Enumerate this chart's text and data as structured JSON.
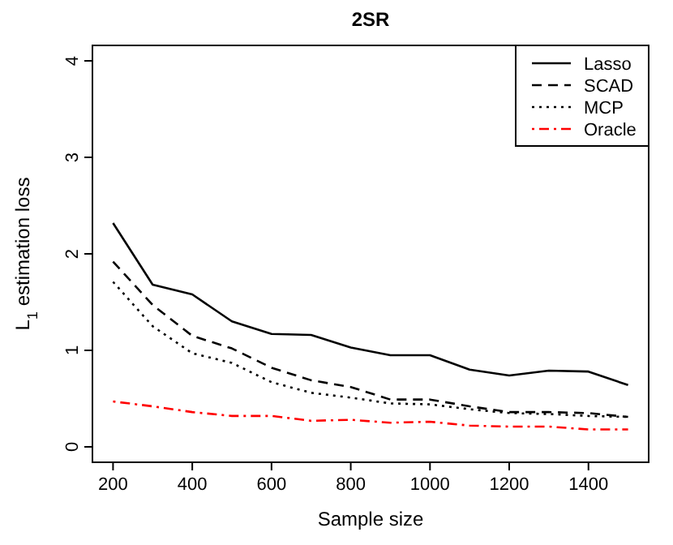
{
  "chart_data": {
    "type": "line",
    "title": "2SR",
    "xlabel": "Sample size",
    "ylabel": "L$_{1}$ estimation loss",
    "x": [
      200,
      300,
      400,
      500,
      600,
      700,
      800,
      900,
      1000,
      1100,
      1200,
      1300,
      1400,
      1500
    ],
    "xlim": [
      148,
      1552
    ],
    "xticks": [
      200,
      400,
      600,
      800,
      1000,
      1200,
      1400
    ],
    "ylim": [
      -0.16,
      4.16
    ],
    "yticks": [
      0,
      1,
      2,
      3,
      4
    ],
    "legend": "top right",
    "grid": false,
    "marker": "none",
    "series": [
      {
        "name": "Lasso",
        "color": "#000000",
        "line_style": "solid",
        "values": [
          2.32,
          1.68,
          1.58,
          1.3,
          1.17,
          1.16,
          1.03,
          0.95,
          0.95,
          0.8,
          0.74,
          0.79,
          0.78,
          0.64
        ]
      },
      {
        "name": "SCAD",
        "color": "#000000",
        "line_style": "dashed",
        "values": [
          1.92,
          1.47,
          1.15,
          1.02,
          0.82,
          0.69,
          0.62,
          0.49,
          0.49,
          0.42,
          0.36,
          0.36,
          0.35,
          0.31
        ]
      },
      {
        "name": "MCP",
        "color": "#000000",
        "line_style": "dotted",
        "values": [
          1.71,
          1.25,
          0.97,
          0.87,
          0.67,
          0.56,
          0.51,
          0.45,
          0.44,
          0.39,
          0.35,
          0.34,
          0.32,
          0.31
        ]
      },
      {
        "name": "Oracle",
        "color": "#ff0000",
        "line_style": "dashdot",
        "values": [
          0.47,
          0.42,
          0.36,
          0.32,
          0.32,
          0.27,
          0.28,
          0.25,
          0.26,
          0.22,
          0.21,
          0.21,
          0.18,
          0.18
        ]
      }
    ]
  }
}
